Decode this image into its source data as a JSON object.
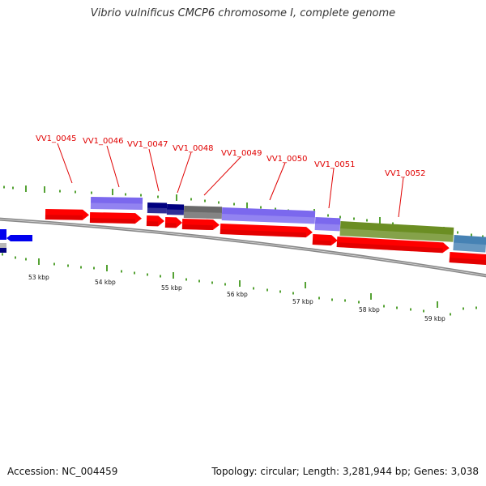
{
  "title": "Vibrio vulnificus CMCP6 chromosome I, complete genome",
  "footer": {
    "accession": "Accession: NC_004459",
    "topology": "Topology: circular; Length: 3,281,944 bp; Genes: 3,038"
  },
  "colors": {
    "forward_cds": "#ff0000",
    "reverse_cds": "#0000ee",
    "backbone": "#888888",
    "tick": "#2a8a00",
    "label": "#e00000",
    "cog_purple": "#7b68ee",
    "cog_navy": "#000080",
    "cog_gray": "#696969",
    "cog_olive": "#6b8e23",
    "cog_steelblue": "#4682b4"
  },
  "gene_labels": [
    "VV1_0045",
    "VV1_0046",
    "VV1_0047",
    "VV1_0048",
    "VV1_0049",
    "VV1_0050",
    "VV1_0051",
    "VV1_0052"
  ],
  "kbp_labels": [
    "53 kbp",
    "54 kbp",
    "55 kbp",
    "56 kbp",
    "57 kbp",
    "58 kbp",
    "59 kbp"
  ],
  "feature_lanes": {
    "cog": [
      "purple",
      "navy",
      "navy",
      "gray",
      "purple",
      "purple",
      "olive",
      "steelblue"
    ],
    "forward_cds": [
      "forward",
      "forward",
      "forward",
      "forward",
      "forward",
      "forward",
      "forward",
      "forward",
      "forward",
      "forward"
    ],
    "reverse_cds": [
      "reverse",
      "reverse"
    ]
  }
}
